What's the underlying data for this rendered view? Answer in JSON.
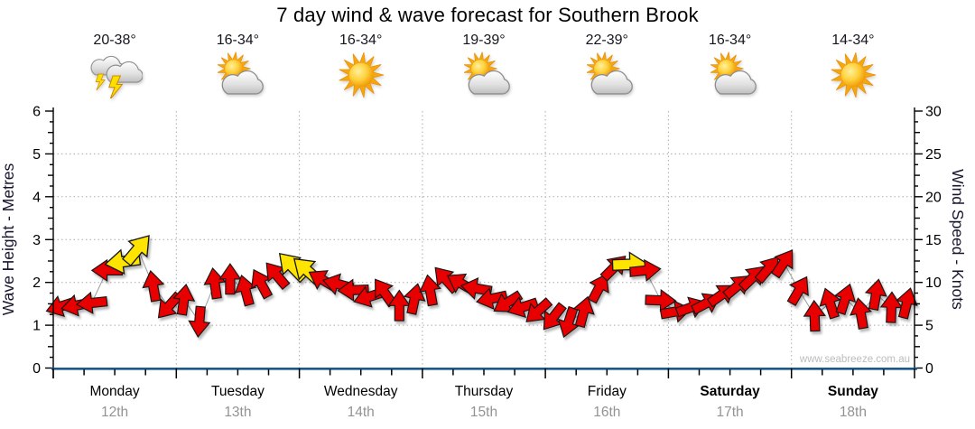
{
  "title": "7 day wind & wave forecast for Southern Brook",
  "watermark": "www.seabreeze.com.au",
  "colors": {
    "arrow_red": "#e80000",
    "arrow_yellow": "#ffe400",
    "arrow_outline": "#161616",
    "axis_line_blue": "#19588c",
    "grid_gray": "#ababab",
    "date_gray": "#939393",
    "watermark_gray": "#bcbcbc",
    "axis_title_navy": "#16162e",
    "day_label_black": "#000000"
  },
  "days": [
    {
      "name": "Monday",
      "date": "12th",
      "temp": "20-38°",
      "icon": "thunderstorm",
      "weekend": false
    },
    {
      "name": "Tuesday",
      "date": "13th",
      "temp": "16-34°",
      "icon": "partly-cloudy",
      "weekend": false
    },
    {
      "name": "Wednesday",
      "date": "14th",
      "temp": "16-34°",
      "icon": "sunny",
      "weekend": false
    },
    {
      "name": "Thursday",
      "date": "15th",
      "temp": "19-39°",
      "icon": "partly-cloudy",
      "weekend": false
    },
    {
      "name": "Friday",
      "date": "16th",
      "temp": "22-39°",
      "icon": "partly-cloudy",
      "weekend": false
    },
    {
      "name": "Saturday",
      "date": "17th",
      "temp": "16-34°",
      "icon": "partly-cloudy",
      "weekend": true
    },
    {
      "name": "Sunday",
      "date": "18th",
      "temp": "14-34°",
      "icon": "sunny",
      "weekend": true
    }
  ],
  "chart_data": {
    "type": "scatter",
    "description": "Wind direction arrows plotted over 7 days, 8 samples per day; vertical position = wind speed in knots (right axis) which aligns with wave height in metres (left axis, 1 m = 5 kn). Yellow arrows mark the stronger wind peaks.",
    "left_axis": {
      "label": "Wave Height - Metres",
      "min": 0,
      "max": 6,
      "major_ticks": [
        0,
        1,
        2,
        3,
        4,
        5,
        6
      ],
      "minor_step": 0.25
    },
    "right_axis": {
      "label": "Wind Speed - Knots",
      "min": 0,
      "max": 30,
      "major_ticks": [
        0,
        5,
        10,
        15,
        20,
        25,
        30
      ],
      "minor_step": 1.25
    },
    "x_axis": {
      "minor_divisions_per_day": 4,
      "grid": "dotted vertical line at each day boundary"
    },
    "wind_arrows": [
      {
        "day": "Monday",
        "knots": [
          7.2,
          7.3,
          7.6,
          11.4,
          12.4,
          13.9,
          9.6,
          7.2
        ],
        "dir_deg": [
          252,
          258,
          264,
          270,
          262,
          40,
          350,
          222
        ],
        "color": [
          "red",
          "red",
          "red",
          "red",
          "yellow",
          "yellow",
          "red",
          "red"
        ]
      },
      {
        "day": "Tuesday",
        "knots": [
          8.0,
          5.4,
          9.9,
          10.4,
          9.1,
          9.9,
          10.9,
          11.9
        ],
        "dir_deg": [
          8,
          185,
          352,
          0,
          345,
          332,
          320,
          316
        ],
        "color": [
          "red",
          "red",
          "red",
          "red",
          "red",
          "red",
          "red",
          "yellow"
        ]
      },
      {
        "day": "Wednesday",
        "knots": [
          11.4,
          10.3,
          9.8,
          9.1,
          8.3,
          8.9,
          7.3,
          8.1
        ],
        "dir_deg": [
          312,
          300,
          285,
          268,
          252,
          325,
          0,
          12
        ],
        "color": [
          "yellow",
          "red",
          "red",
          "red",
          "red",
          "red",
          "red",
          "red"
        ]
      },
      {
        "day": "Thursday",
        "knots": [
          9.1,
          10.4,
          9.9,
          9.3,
          8.1,
          7.6,
          7.1,
          6.6
        ],
        "dir_deg": [
          350,
          318,
          300,
          280,
          258,
          238,
          252,
          228
        ],
        "color": [
          "red",
          "red",
          "red",
          "red",
          "red",
          "red",
          "red",
          "red"
        ]
      },
      {
        "day": "Friday",
        "knots": [
          5.9,
          5.3,
          6.6,
          9.4,
          11.8,
          12.1,
          11.4,
          7.9
        ],
        "dir_deg": [
          218,
          198,
          15,
          28,
          45,
          88,
          84,
          92
        ],
        "color": [
          "red",
          "red",
          "red",
          "red",
          "red",
          "yellow",
          "red",
          "red"
        ]
      },
      {
        "day": "Saturday",
        "knots": [
          6.6,
          7.1,
          7.6,
          8.6,
          9.6,
          10.6,
          11.6,
          12.3
        ],
        "dir_deg": [
          80,
          70,
          62,
          55,
          50,
          46,
          40,
          34
        ],
        "color": [
          "red",
          "red",
          "red",
          "red",
          "red",
          "red",
          "red",
          "red"
        ]
      },
      {
        "day": "Sunday",
        "knots": [
          9.1,
          6.1,
          7.6,
          8.1,
          6.4,
          8.6,
          7.1,
          7.6
        ],
        "dir_deg": [
          30,
          358,
          342,
          18,
          350,
          10,
          2,
          14
        ],
        "color": [
          "red",
          "red",
          "red",
          "red",
          "red",
          "red",
          "red",
          "red"
        ]
      }
    ]
  }
}
